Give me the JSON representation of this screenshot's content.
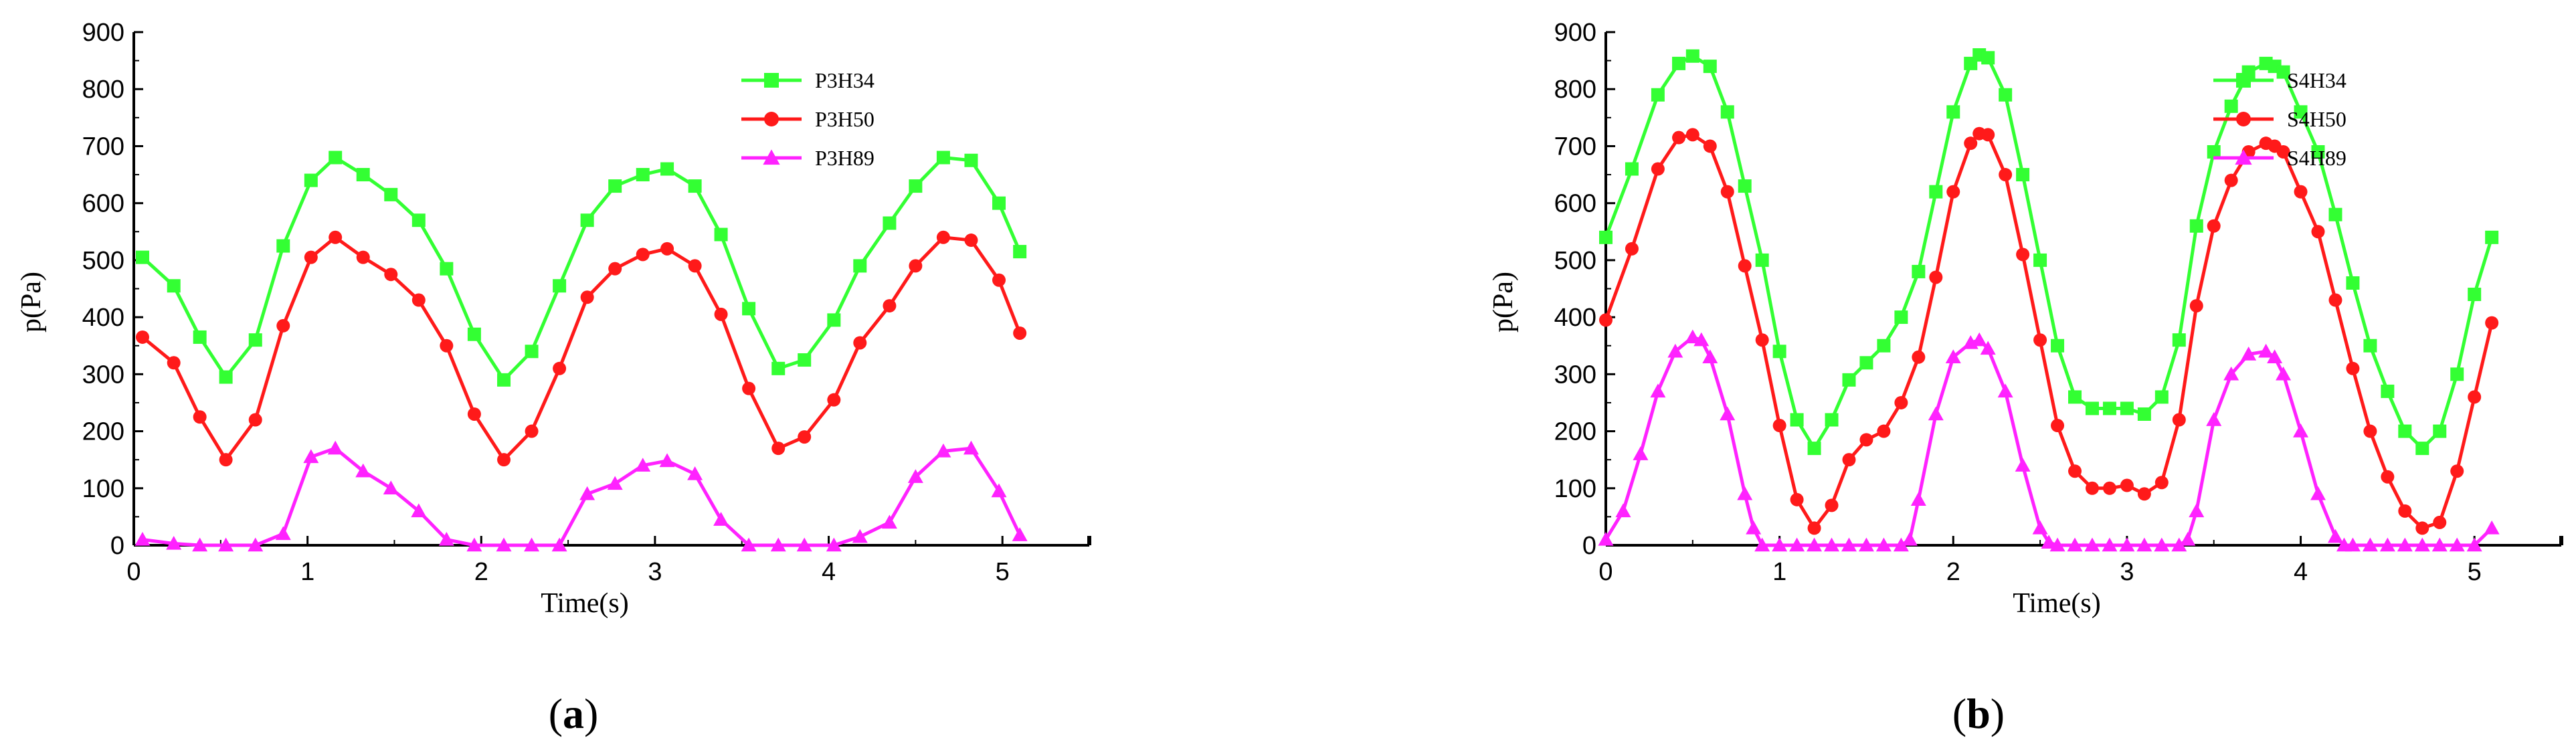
{
  "captions": {
    "a_open": "(",
    "a_letter": "a",
    "a_close": ")",
    "b_open": "(",
    "b_letter": "b",
    "b_close": ")"
  },
  "chart_data": [
    {
      "type": "line",
      "xlabel": "Time(s)",
      "ylabel": "p(Pa)",
      "xlim": [
        0,
        5.5
      ],
      "ylim": [
        0,
        900
      ],
      "x_ticks": [
        0,
        1,
        2,
        3,
        4,
        5
      ],
      "y_ticks": [
        0,
        100,
        200,
        300,
        400,
        500,
        600,
        700,
        800,
        900
      ],
      "x_tick_labels": [
        "0",
        "1",
        "2",
        "3",
        "4",
        "5"
      ],
      "y_tick_labels": [
        "0",
        "100",
        "200",
        "300",
        "400",
        "500",
        "600",
        "700",
        "800",
        "900"
      ],
      "grid": false,
      "legend_position": "top-right",
      "series": [
        {
          "name": "P3H34",
          "color": "#33ff33",
          "marker": "square",
          "x": [
            0.05,
            0.23,
            0.38,
            0.53,
            0.7,
            0.86,
            1.02,
            1.16,
            1.32,
            1.48,
            1.64,
            1.8,
            1.96,
            2.13,
            2.29,
            2.45,
            2.61,
            2.77,
            2.93,
            3.07,
            3.23,
            3.38,
            3.54,
            3.71,
            3.86,
            4.03,
            4.18,
            4.35,
            4.5,
            4.66,
            4.82,
            4.98,
            5.1
          ],
          "y": [
            505,
            455,
            365,
            295,
            360,
            525,
            640,
            680,
            650,
            615,
            570,
            485,
            370,
            290,
            340,
            455,
            570,
            630,
            650,
            660,
            630,
            545,
            415,
            310,
            325,
            395,
            490,
            565,
            630,
            680,
            675,
            600,
            515
          ]
        },
        {
          "name": "P3H50",
          "color": "#ff1a1a",
          "marker": "circle",
          "x": [
            0.05,
            0.23,
            0.38,
            0.53,
            0.7,
            0.86,
            1.02,
            1.16,
            1.32,
            1.48,
            1.64,
            1.8,
            1.96,
            2.13,
            2.29,
            2.45,
            2.61,
            2.77,
            2.93,
            3.07,
            3.23,
            3.38,
            3.54,
            3.71,
            3.86,
            4.03,
            4.18,
            4.35,
            4.5,
            4.66,
            4.82,
            4.98,
            5.1
          ],
          "y": [
            365,
            320,
            225,
            150,
            220,
            385,
            505,
            540,
            505,
            475,
            430,
            350,
            230,
            150,
            200,
            310,
            435,
            485,
            510,
            520,
            490,
            405,
            275,
            170,
            190,
            255,
            355,
            420,
            490,
            540,
            535,
            465,
            372
          ]
        },
        {
          "name": "P3H89",
          "color": "#ff22ff",
          "marker": "triangle",
          "x": [
            0.05,
            0.23,
            0.38,
            0.53,
            0.7,
            0.86,
            1.02,
            1.16,
            1.32,
            1.48,
            1.64,
            1.8,
            1.96,
            2.13,
            2.29,
            2.45,
            2.61,
            2.77,
            2.93,
            3.07,
            3.23,
            3.38,
            3.54,
            3.71,
            3.86,
            4.03,
            4.18,
            4.35,
            4.5,
            4.66,
            4.82,
            4.98,
            5.1
          ],
          "y": [
            10,
            3,
            0,
            0,
            0,
            20,
            155,
            170,
            130,
            100,
            60,
            10,
            0,
            0,
            0,
            0,
            90,
            108,
            140,
            148,
            125,
            45,
            0,
            0,
            0,
            0,
            15,
            40,
            120,
            165,
            170,
            95,
            18
          ]
        }
      ]
    },
    {
      "type": "line",
      "xlabel": "Time(s)",
      "ylabel": "p(Pa)",
      "xlim": [
        0,
        5.5
      ],
      "ylim": [
        0,
        900
      ],
      "x_ticks": [
        0,
        1,
        2,
        3,
        4,
        5
      ],
      "y_ticks": [
        0,
        100,
        200,
        300,
        400,
        500,
        600,
        700,
        800,
        900
      ],
      "x_tick_labels": [
        "0",
        "1",
        "2",
        "3",
        "4",
        "5"
      ],
      "y_tick_labels": [
        "0",
        "100",
        "200",
        "300",
        "400",
        "500",
        "600",
        "700",
        "800",
        "900"
      ],
      "grid": false,
      "legend_position": "top-right",
      "series": [
        {
          "name": "S4H34",
          "color": "#33ff33",
          "marker": "square",
          "x": [
            0.0,
            0.15,
            0.3,
            0.42,
            0.5,
            0.6,
            0.7,
            0.8,
            0.9,
            1.0,
            1.1,
            1.2,
            1.3,
            1.4,
            1.5,
            1.6,
            1.7,
            1.8,
            1.9,
            2.0,
            2.1,
            2.15,
            2.2,
            2.3,
            2.4,
            2.5,
            2.6,
            2.7,
            2.8,
            2.9,
            3.0,
            3.1,
            3.2,
            3.3,
            3.4,
            3.5,
            3.6,
            3.7,
            3.8,
            3.85,
            3.9,
            4.0,
            4.1,
            4.2,
            4.3,
            4.4,
            4.5,
            4.6,
            4.7,
            4.8,
            4.9,
            5.0,
            5.1
          ],
          "y": [
            540,
            660,
            790,
            845,
            858,
            840,
            760,
            630,
            500,
            340,
            220,
            170,
            220,
            290,
            320,
            350,
            400,
            480,
            620,
            760,
            845,
            860,
            855,
            790,
            650,
            500,
            350,
            260,
            240,
            240,
            240,
            230,
            260,
            360,
            560,
            690,
            770,
            830,
            845,
            840,
            830,
            760,
            690,
            580,
            460,
            350,
            270,
            200,
            170,
            200,
            300,
            440,
            540
          ]
        },
        {
          "name": "S4H50",
          "color": "#ff1a1a",
          "marker": "circle",
          "x": [
            0.0,
            0.15,
            0.3,
            0.42,
            0.5,
            0.6,
            0.7,
            0.8,
            0.9,
            1.0,
            1.1,
            1.2,
            1.3,
            1.4,
            1.5,
            1.6,
            1.7,
            1.8,
            1.9,
            2.0,
            2.1,
            2.15,
            2.2,
            2.3,
            2.4,
            2.5,
            2.6,
            2.7,
            2.8,
            2.9,
            3.0,
            3.1,
            3.2,
            3.3,
            3.4,
            3.5,
            3.6,
            3.7,
            3.8,
            3.85,
            3.9,
            4.0,
            4.1,
            4.2,
            4.3,
            4.4,
            4.5,
            4.6,
            4.7,
            4.8,
            4.9,
            5.0,
            5.1
          ],
          "y": [
            395,
            520,
            660,
            715,
            720,
            700,
            620,
            490,
            360,
            210,
            80,
            30,
            70,
            150,
            185,
            200,
            250,
            330,
            470,
            620,
            705,
            722,
            720,
            650,
            510,
            360,
            210,
            130,
            100,
            100,
            105,
            90,
            110,
            220,
            420,
            560,
            640,
            690,
            705,
            700,
            690,
            620,
            550,
            430,
            310,
            200,
            120,
            60,
            30,
            40,
            130,
            260,
            390
          ]
        },
        {
          "name": "S4H89",
          "color": "#ff22ff",
          "marker": "triangle",
          "x": [
            0.0,
            0.1,
            0.2,
            0.3,
            0.4,
            0.5,
            0.55,
            0.6,
            0.7,
            0.8,
            0.85,
            0.9,
            1.0,
            1.1,
            1.2,
            1.3,
            1.4,
            1.5,
            1.6,
            1.7,
            1.75,
            1.8,
            1.9,
            2.0,
            2.1,
            2.15,
            2.2,
            2.3,
            2.4,
            2.5,
            2.55,
            2.6,
            2.7,
            2.8,
            2.9,
            3.0,
            3.1,
            3.2,
            3.3,
            3.35,
            3.4,
            3.5,
            3.6,
            3.7,
            3.8,
            3.85,
            3.9,
            4.0,
            4.1,
            4.2,
            4.25,
            4.3,
            4.4,
            4.5,
            4.6,
            4.7,
            4.8,
            4.9,
            5.0,
            5.1
          ],
          "y": [
            10,
            60,
            160,
            270,
            340,
            365,
            360,
            330,
            230,
            90,
            30,
            0,
            0,
            0,
            0,
            0,
            0,
            0,
            0,
            0,
            10,
            80,
            230,
            330,
            355,
            360,
            345,
            270,
            140,
            30,
            5,
            0,
            0,
            0,
            0,
            0,
            0,
            0,
            0,
            10,
            60,
            220,
            300,
            335,
            340,
            330,
            300,
            200,
            90,
            15,
            0,
            0,
            0,
            0,
            0,
            0,
            0,
            0,
            0,
            30
          ]
        }
      ]
    }
  ]
}
